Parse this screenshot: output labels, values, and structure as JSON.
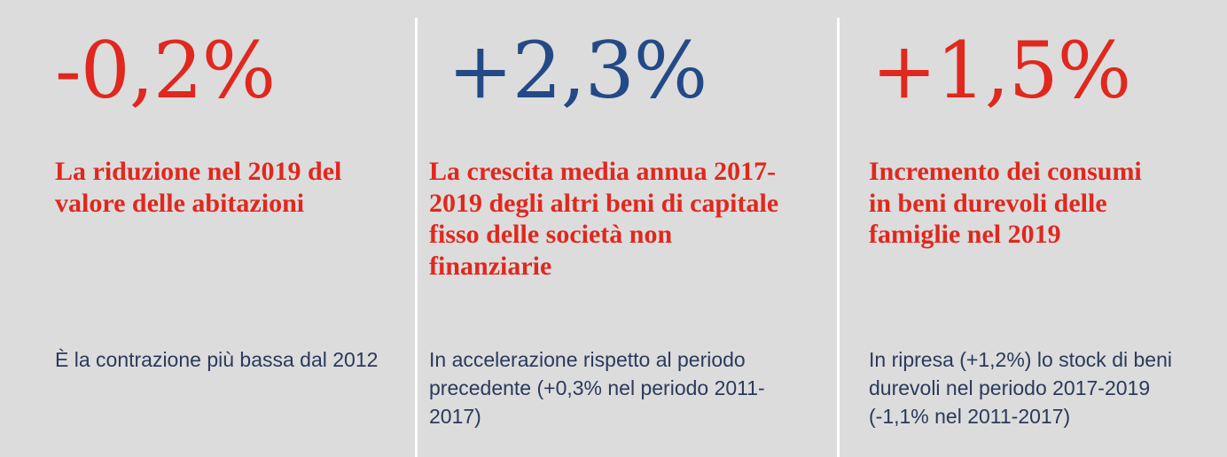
{
  "colors": {
    "background": "#dcdcdc",
    "divider": "#ffffff",
    "red_accent": "#e0281e",
    "blue_accent": "#234a86",
    "body_text": "#2a3a5a"
  },
  "panels": [
    {
      "figure": "-0,2%",
      "figure_color": "#e0281e",
      "headline": "La riduzione nel 2019 del valore delle abitazioni",
      "note": "È la contrazione più bassa dal 2012"
    },
    {
      "figure": "+2,3%",
      "figure_color": "#234a86",
      "headline": "La crescita media annua 2017-2019 degli altri beni di capitale fisso delle società non finanziarie",
      "note": "In accelerazione rispetto al periodo precedente (+0,3% nel periodo 2011-2017)"
    },
    {
      "figure": "+1,5%",
      "figure_color": "#e0281e",
      "headline": "Incremento dei consumi in beni durevoli delle famiglie nel 2019",
      "note": "In ripresa (+1,2%) lo stock di beni durevoli nel periodo 2017-2019 (-1,1% nel 2011-2017)"
    }
  ]
}
